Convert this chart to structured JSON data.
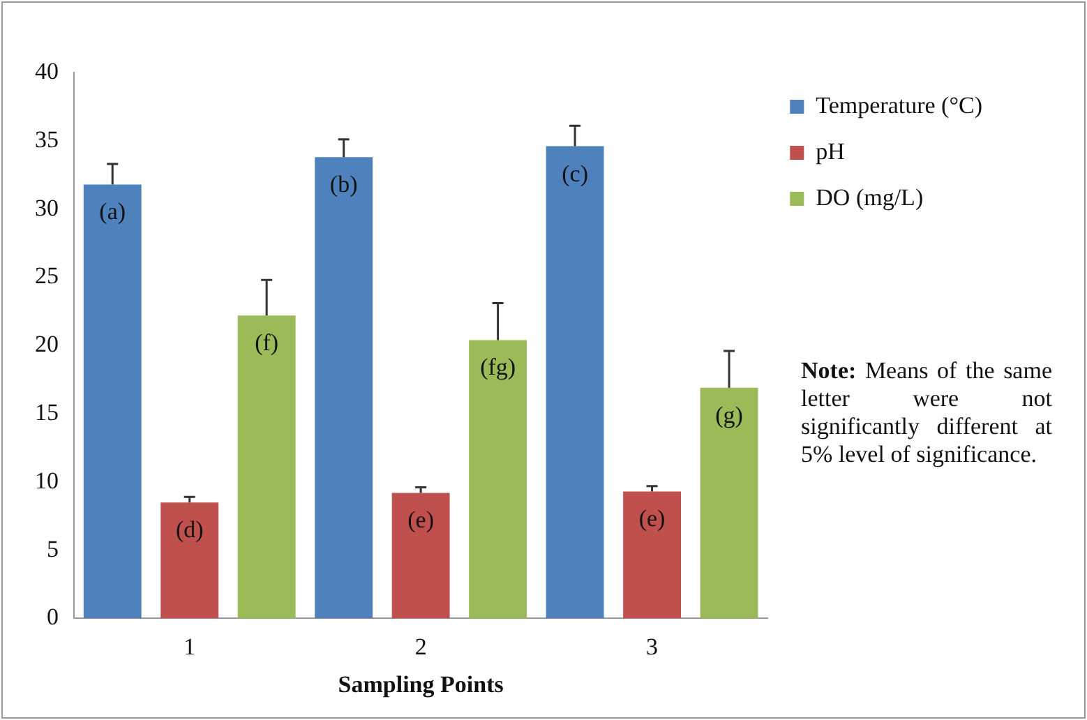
{
  "chart_data": {
    "type": "bar",
    "xlabel": "Sampling Points",
    "categories": [
      "1",
      "2",
      "3"
    ],
    "series": [
      {
        "name": "Temperature (°C)",
        "color": "#4f81bd",
        "values": [
          31.8,
          33.8,
          34.6
        ],
        "errors": [
          [
            31.8,
            33.3
          ],
          [
            33.8,
            35.1
          ],
          [
            34.6,
            36.1
          ]
        ],
        "value_labels": [
          "(a)",
          "(b)",
          "(c)"
        ]
      },
      {
        "name": "pH",
        "color": "#c0504d",
        "values": [
          8.5,
          9.2,
          9.3
        ],
        "errors": [
          [
            8.5,
            8.9
          ],
          [
            9.2,
            9.6
          ],
          [
            9.3,
            9.7
          ]
        ],
        "value_labels": [
          "(d)",
          "(e)",
          "(e)"
        ]
      },
      {
        "name": "DO (mg/L)",
        "color": "#9bbb59",
        "values": [
          22.2,
          20.4,
          16.9
        ],
        "errors": [
          [
            22.2,
            24.8
          ],
          [
            20.4,
            23.1
          ],
          [
            16.9,
            19.6
          ]
        ],
        "value_labels": [
          "(f)",
          "(fg)",
          "(g)"
        ]
      }
    ],
    "ylim": [
      0,
      40
    ],
    "yticks": [
      0,
      5,
      10,
      15,
      20,
      25,
      30,
      35,
      40
    ],
    "grid": false,
    "legend": "right",
    "annotations": [
      "**Note:** Means of the same letter were not significantly different at 5% level of significance."
    ]
  }
}
